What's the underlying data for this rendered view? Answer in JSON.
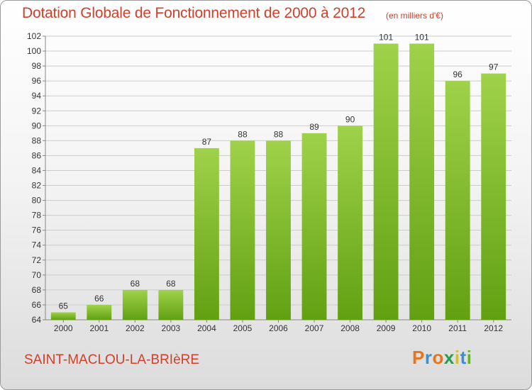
{
  "header": {
    "title": "Dotation Globale de Fonctionnement de 2000 à 2012",
    "unit": "(en milliers d'€)"
  },
  "footer": {
    "commune": "SAINT-MACLOU-LA-BRIèRE",
    "logo_letters": [
      "P",
      "r",
      "o",
      "x",
      "i",
      "t",
      "i"
    ],
    "logo_colors": [
      "#e8731a",
      "#3a8fd0",
      "#e8731a",
      "#2a9d48",
      "#d8c21a",
      "#3a8fd0",
      "#6ab02e"
    ]
  },
  "colors": {
    "bar_top": "#9fd24a",
    "bar_bottom": "#62a012",
    "text": "#d0402a",
    "grid": "#cccccc"
  },
  "chart_data": {
    "type": "bar",
    "title": "Dotation Globale de Fonctionnement de 2000 à 2012",
    "subtitle": "(en milliers d'€)",
    "xlabel": "",
    "ylabel": "",
    "categories": [
      "2000",
      "2001",
      "2002",
      "2003",
      "2004",
      "2005",
      "2006",
      "2007",
      "2008",
      "2009",
      "2010",
      "2011",
      "2012"
    ],
    "values": [
      65,
      66,
      68,
      68,
      87,
      88,
      88,
      89,
      90,
      101,
      101,
      96,
      97
    ],
    "ylim": [
      64,
      102
    ],
    "ytick_step": 2,
    "grid": true
  }
}
